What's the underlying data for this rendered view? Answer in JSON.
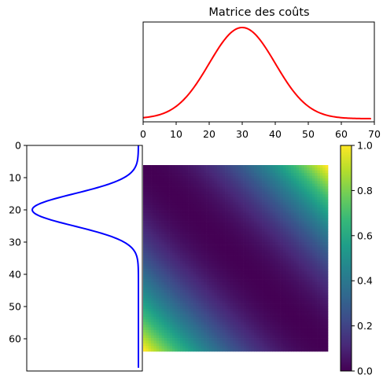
{
  "title": "Matrice des coûts",
  "colors": {
    "top_curve": "#ff0000",
    "left_curve": "#0000ff",
    "colormap": "viridis"
  },
  "chart_data": [
    {
      "id": "top-distribution",
      "type": "line",
      "title": "Matrice des coûts",
      "xlim": [
        0,
        70
      ],
      "xticks": [
        0,
        10,
        20,
        30,
        40,
        50,
        60,
        70
      ],
      "yticks_shown": false,
      "curve": {
        "kind": "gaussian",
        "mean": 30,
        "std": 10,
        "x_start": 0,
        "x_end": 69,
        "color": "#ff0000"
      }
    },
    {
      "id": "left-distribution",
      "type": "line",
      "orientation": "vertical",
      "ylim": [
        70,
        0
      ],
      "yticks": [
        0,
        10,
        20,
        30,
        40,
        50,
        60
      ],
      "xticks_shown": false,
      "curve": {
        "kind": "gaussian",
        "mean": 20,
        "std": 5,
        "y_start": 0,
        "y_end": 69,
        "color": "#0000ff"
      }
    },
    {
      "id": "cost-matrix",
      "type": "heatmap",
      "size": [
        70,
        70
      ],
      "formula": "((i - j) / 69)^2",
      "vmin": 0,
      "vmax": 1,
      "colormap": "viridis",
      "colorbar_ticks": [
        "0.0",
        "0.2",
        "0.4",
        "0.6",
        "0.8",
        "1.0"
      ]
    }
  ]
}
